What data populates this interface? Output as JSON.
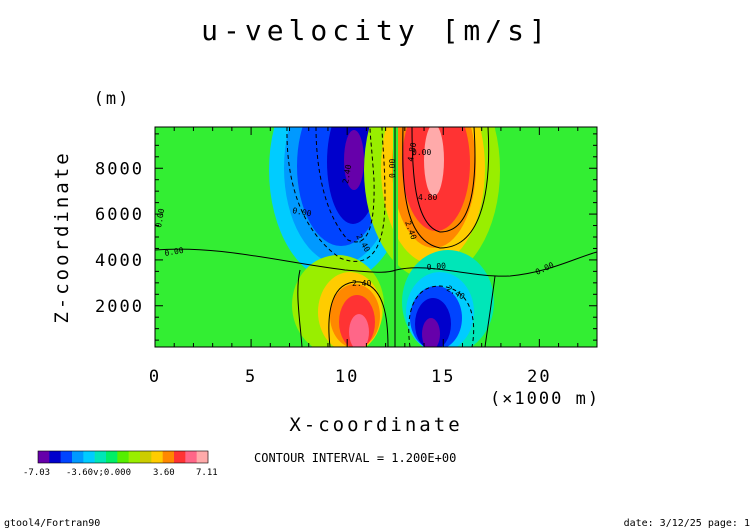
{
  "chart_data": {
    "type": "heatmap",
    "title": "u-velocity [m/s]",
    "xlabel": "X-coordinate",
    "ylabel": "Z-coordinate",
    "x_unit_label": "(×1000 m)",
    "y_unit_label": "(m)",
    "xlim": [
      0,
      23
    ],
    "ylim": [
      200,
      9800
    ],
    "x_ticks": [
      "0",
      "5",
      "10",
      "15",
      "20"
    ],
    "x_tick_values": [
      0,
      5,
      10,
      15,
      20
    ],
    "y_ticks": [
      "2000",
      "4000",
      "6000",
      "8000"
    ],
    "y_tick_values": [
      2000,
      4000,
      6000,
      8000
    ],
    "contour_interval_text": "CONTOUR INTERVAL = 1.200E+00",
    "contour_labels": [
      "0.00",
      "0.00",
      "0.00",
      "0.00",
      "0.00",
      "0.00",
      "0.00",
      "2.40",
      "2.40",
      "2.40",
      "2.40",
      "2.40",
      "4.80",
      "4.80"
    ],
    "extrema": [
      {
        "type": "min",
        "x": 10.4,
        "z": 7600,
        "value": -7.03
      },
      {
        "type": "max",
        "x": 14.4,
        "z": 7600,
        "value": 7.11
      },
      {
        "type": "max",
        "x": 10.6,
        "z": 900,
        "value": 7.11
      },
      {
        "type": "min",
        "x": 14.2,
        "z": 900,
        "value": -7.03
      }
    ],
    "colorbar": {
      "min_label": "-7.03",
      "mid_labels": "-3.60v;0.000",
      "pos_label": "3.60",
      "max_label": "7.11",
      "colors": [
        "#6600aa",
        "#0000cc",
        "#0044ff",
        "#0099ff",
        "#00ccff",
        "#00e6b8",
        "#00ee66",
        "#55ee00",
        "#99ee00",
        "#cccc00",
        "#ffcc00",
        "#ff8800",
        "#ff3333",
        "#ff6688",
        "#ffaaaa"
      ]
    }
  },
  "footer": {
    "left": "gtool4/Fortran90",
    "right": "date: 3/12/25 page: 1"
  }
}
